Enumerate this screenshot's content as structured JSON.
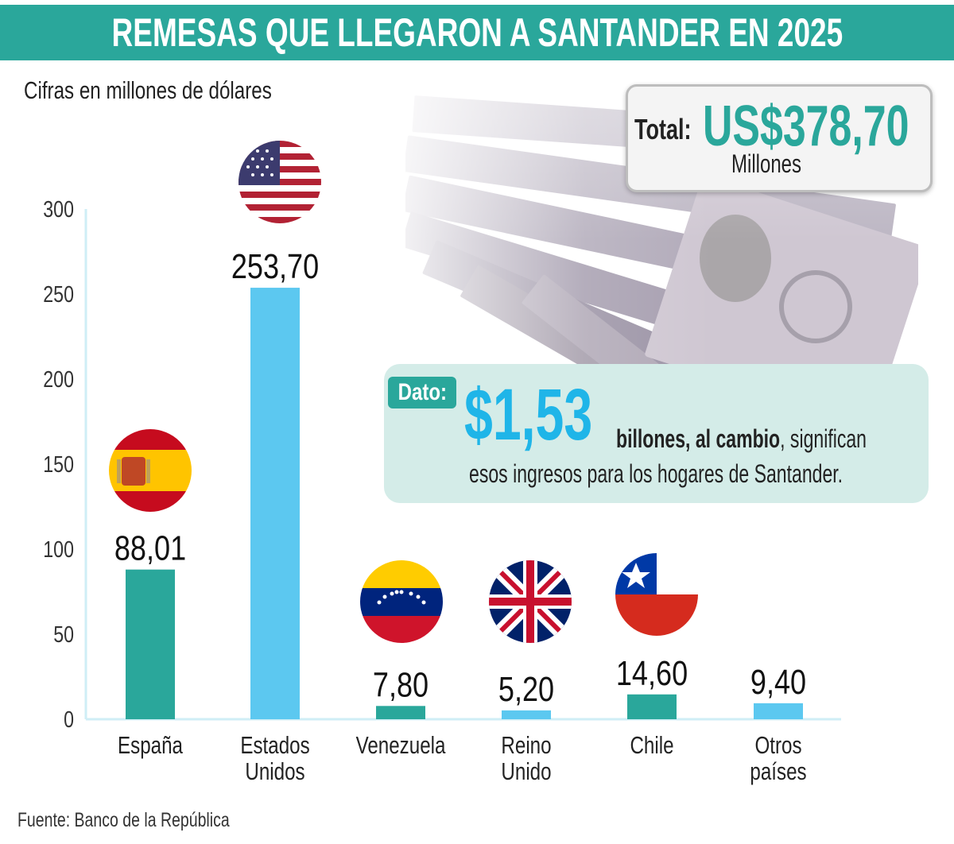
{
  "header": {
    "title": "REMESAS QUE LLEGARON A SANTANDER EN 2025"
  },
  "subtitle": "Cifras en millones de dólares",
  "total": {
    "label": "Total:",
    "value": "US$378,70",
    "unit": "Millones"
  },
  "dato": {
    "tag": "Dato:",
    "value": "$1,53",
    "bold_text": "billones, al cambio",
    "rest_text": ", significan",
    "line2": "esos ingresos para los hogares de Santander."
  },
  "source": "Fuente: Banco de la República",
  "colors": {
    "teal": "#2aa79b",
    "blue": "#5cc8f0",
    "accent_blue": "#1fb5e8"
  },
  "chart_data": {
    "type": "bar",
    "categories": [
      [
        "España"
      ],
      [
        "Estados",
        "Unidos"
      ],
      [
        "Venezuela"
      ],
      [
        "Reino",
        "Unido"
      ],
      [
        "Chile"
      ],
      [
        "Otros",
        "países"
      ]
    ],
    "values": [
      88.01,
      253.7,
      7.8,
      5.2,
      14.6,
      9.4
    ],
    "value_labels": [
      "88,01",
      "253,70",
      "7,80",
      "5,20",
      "14,60",
      "9,40"
    ],
    "bar_colors": [
      "#2aa79b",
      "#5cc8f0",
      "#2aa79b",
      "#5cc8f0",
      "#2aa79b",
      "#5cc8f0"
    ],
    "flags": [
      "spain-flag-icon",
      "usa-flag-icon",
      "venezuela-flag-icon",
      "uk-flag-icon",
      "chile-flag-icon",
      ""
    ],
    "yticks": [
      "0",
      "50",
      "100",
      "150",
      "200",
      "250",
      "300"
    ],
    "ylim": [
      0,
      300
    ],
    "title": "",
    "xlabel": "",
    "ylabel": ""
  }
}
